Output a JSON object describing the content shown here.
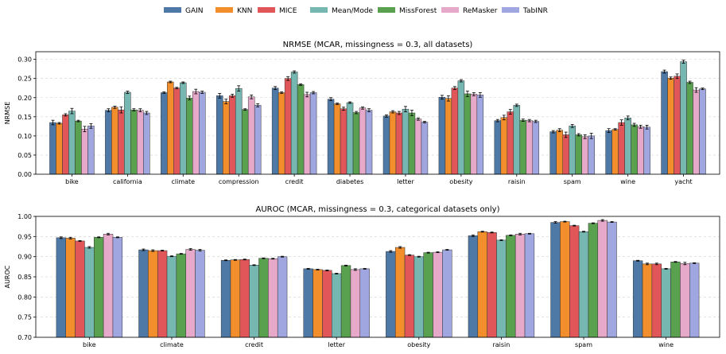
{
  "legend": {
    "position": "top-center",
    "entries": [
      {
        "name": "GAIN",
        "color": "#4e79a7"
      },
      {
        "name": "KNN",
        "color": "#f28e2b"
      },
      {
        "name": "MICE",
        "color": "#e15759"
      },
      {
        "name": "Mean/Mode",
        "color": "#76b7b2"
      },
      {
        "name": "MissForest",
        "color": "#59a14f"
      },
      {
        "name": "ReMasker",
        "color": "#e7a9c9"
      },
      {
        "name": "TabINR",
        "color": "#a0a6e0"
      }
    ]
  },
  "chart_data": [
    {
      "type": "bar",
      "title": "NRMSE (MCAR, missingness = 0.3, all datasets)",
      "xlabel": "",
      "ylabel": "NRMSE",
      "ylim": [
        0,
        0.32
      ],
      "yticks": [
        0.0,
        0.05,
        0.1,
        0.15,
        0.2,
        0.25,
        0.3
      ],
      "ytick_labels": [
        "0.00",
        "0.05",
        "0.10",
        "0.15",
        "0.20",
        "0.25",
        "0.30"
      ],
      "grid": "y-dashed",
      "error_bars": true,
      "categories": [
        "bike",
        "california",
        "climate",
        "compression",
        "credit",
        "diabetes",
        "letter",
        "obesity",
        "raisin",
        "spam",
        "wine",
        "yacht"
      ],
      "series": [
        {
          "name": "GAIN",
          "values": [
            0.135,
            0.167,
            0.213,
            0.205,
            0.225,
            0.196,
            0.152,
            0.201,
            0.14,
            0.111,
            0.114,
            0.268
          ],
          "errors": [
            0.006,
            0.004,
            0.002,
            0.006,
            0.004,
            0.004,
            0.003,
            0.005,
            0.003,
            0.003,
            0.005,
            0.004
          ]
        },
        {
          "name": "KNN",
          "values": [
            0.133,
            0.175,
            0.241,
            0.19,
            0.213,
            0.184,
            0.163,
            0.198,
            0.148,
            0.115,
            0.117,
            0.251
          ],
          "errors": [
            0.002,
            0.003,
            0.002,
            0.006,
            0.002,
            0.002,
            0.003,
            0.007,
            0.006,
            0.004,
            0.002,
            0.003
          ]
        },
        {
          "name": "MICE",
          "values": [
            0.155,
            0.168,
            0.225,
            0.205,
            0.25,
            0.171,
            0.16,
            0.225,
            0.163,
            0.103,
            0.135,
            0.256
          ],
          "errors": [
            0.003,
            0.008,
            0.002,
            0.004,
            0.005,
            0.004,
            0.004,
            0.004,
            0.006,
            0.007,
            0.007,
            0.006
          ]
        },
        {
          "name": "Mean/Mode",
          "values": [
            0.165,
            0.214,
            0.239,
            0.224,
            0.267,
            0.187,
            0.17,
            0.244,
            0.18,
            0.126,
            0.147,
            0.294
          ],
          "errors": [
            0.007,
            0.003,
            0.002,
            0.007,
            0.003,
            0.002,
            0.007,
            0.003,
            0.003,
            0.004,
            0.005,
            0.004
          ]
        },
        {
          "name": "MissForest",
          "values": [
            0.139,
            0.168,
            0.199,
            0.169,
            0.234,
            0.161,
            0.16,
            0.21,
            0.141,
            0.103,
            0.129,
            0.24
          ],
          "errors": [
            0.002,
            0.003,
            0.005,
            0.002,
            0.002,
            0.003,
            0.007,
            0.007,
            0.003,
            0.003,
            0.004,
            0.003
          ]
        },
        {
          "name": "ReMasker",
          "values": [
            0.118,
            0.167,
            0.216,
            0.202,
            0.208,
            0.173,
            0.144,
            0.209,
            0.14,
            0.098,
            0.124,
            0.22
          ],
          "errors": [
            0.007,
            0.004,
            0.006,
            0.005,
            0.006,
            0.003,
            0.003,
            0.004,
            0.003,
            0.005,
            0.004,
            0.006
          ]
        },
        {
          "name": "TabINR",
          "values": [
            0.126,
            0.16,
            0.214,
            0.18,
            0.213,
            0.167,
            0.136,
            0.207,
            0.138,
            0.1,
            0.123,
            0.223
          ],
          "errors": [
            0.006,
            0.004,
            0.003,
            0.004,
            0.003,
            0.004,
            0.002,
            0.006,
            0.003,
            0.007,
            0.005,
            0.002
          ]
        }
      ]
    },
    {
      "type": "bar",
      "title": "AUROC (MCAR, missingness = 0.3, categorical datasets only)",
      "xlabel": "",
      "ylabel": "AUROC",
      "ylim": [
        0.7,
        1.0
      ],
      "yticks": [
        0.7,
        0.75,
        0.8,
        0.85,
        0.9,
        0.95,
        1.0
      ],
      "ytick_labels": [
        "0.70",
        "0.75",
        "0.80",
        "0.85",
        "0.90",
        "0.95",
        "1.00"
      ],
      "grid": "y-dashed",
      "error_bars": true,
      "categories": [
        "bike",
        "climate",
        "credit",
        "letter",
        "obesity",
        "raisin",
        "spam",
        "wine"
      ],
      "series": [
        {
          "name": "GAIN",
          "values": [
            0.947,
            0.917,
            0.891,
            0.87,
            0.913,
            0.952,
            0.985,
            0.89
          ],
          "errors": [
            0.002,
            0.002,
            0.001,
            0.001,
            0.002,
            0.002,
            0.002,
            0.001
          ]
        },
        {
          "name": "KNN",
          "values": [
            0.946,
            0.915,
            0.892,
            0.868,
            0.923,
            0.962,
            0.987,
            0.882
          ],
          "errors": [
            0.002,
            0.002,
            0.001,
            0.001,
            0.002,
            0.001,
            0.001,
            0.002
          ]
        },
        {
          "name": "MICE",
          "values": [
            0.939,
            0.915,
            0.893,
            0.866,
            0.904,
            0.96,
            0.977,
            0.882
          ],
          "errors": [
            0.001,
            0.001,
            0.001,
            0.001,
            0.001,
            0.001,
            0.001,
            0.002
          ]
        },
        {
          "name": "Mean/Mode",
          "values": [
            0.923,
            0.901,
            0.879,
            0.858,
            0.9,
            0.941,
            0.962,
            0.87
          ],
          "errors": [
            0.002,
            0.001,
            0.001,
            0.001,
            0.001,
            0.001,
            0.001,
            0.001
          ]
        },
        {
          "name": "MissForest",
          "values": [
            0.948,
            0.907,
            0.896,
            0.878,
            0.91,
            0.953,
            0.983,
            0.887
          ],
          "errors": [
            0.001,
            0.001,
            0.001,
            0.001,
            0.001,
            0.001,
            0.001,
            0.001
          ]
        },
        {
          "name": "ReMasker",
          "values": [
            0.956,
            0.918,
            0.895,
            0.868,
            0.911,
            0.956,
            0.99,
            0.883
          ],
          "errors": [
            0.002,
            0.002,
            0.001,
            0.002,
            0.001,
            0.002,
            0.002,
            0.003
          ]
        },
        {
          "name": "TabINR",
          "values": [
            0.948,
            0.916,
            0.9,
            0.87,
            0.917,
            0.957,
            0.986,
            0.884
          ],
          "errors": [
            0.001,
            0.002,
            0.001,
            0.001,
            0.001,
            0.001,
            0.001,
            0.001
          ]
        }
      ]
    }
  ]
}
